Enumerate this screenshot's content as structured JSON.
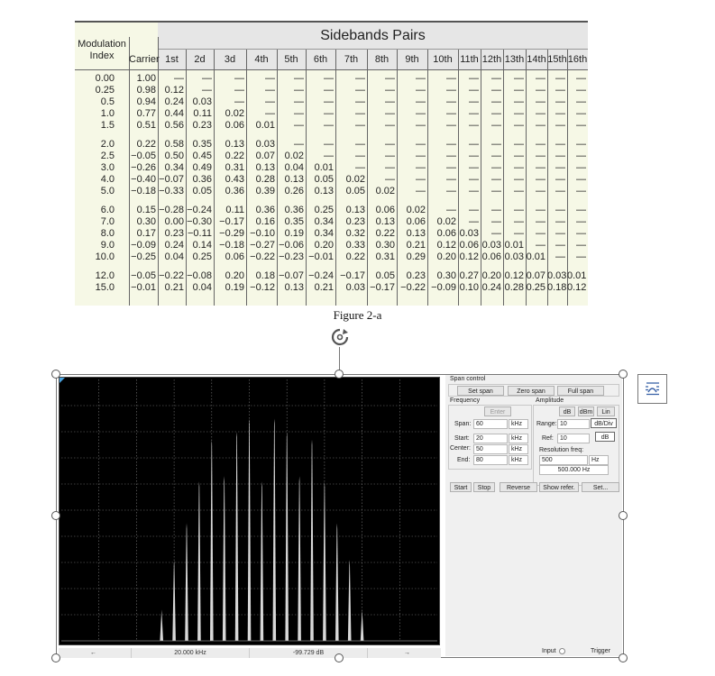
{
  "table": {
    "title": "Sidebands Pairs",
    "mod_header": [
      "Modulation",
      "Index"
    ],
    "carrier_header": "Carrier",
    "sideband_headers": [
      "1st",
      "2d",
      "3d",
      "4th",
      "5th",
      "6th",
      "7th",
      "8th",
      "9th",
      "10th",
      "11th",
      "12th",
      "13th",
      "14th",
      "15th",
      "16th"
    ],
    "rows": [
      {
        "index": "0.00",
        "values": [
          "1.00",
          "—",
          "—",
          "—",
          "—",
          "—",
          "—",
          "—",
          "—",
          "—",
          "—",
          "—",
          "—",
          "—",
          "—",
          "—",
          "—"
        ]
      },
      {
        "index": "0.25",
        "values": [
          "0.98",
          "0.12",
          "—",
          "—",
          "—",
          "—",
          "—",
          "—",
          "—",
          "—",
          "—",
          "—",
          "—",
          "—",
          "—",
          "—",
          "—"
        ]
      },
      {
        "index": "0.5",
        "values": [
          "0.94",
          "0.24",
          "0.03",
          "—",
          "—",
          "—",
          "—",
          "—",
          "—",
          "—",
          "—",
          "—",
          "—",
          "—",
          "—",
          "—",
          "—"
        ]
      },
      {
        "index": "1.0",
        "values": [
          "0.77",
          "0.44",
          "0.11",
          "0.02",
          "—",
          "—",
          "—",
          "—",
          "—",
          "—",
          "—",
          "—",
          "—",
          "—",
          "—",
          "—",
          "—"
        ]
      },
      {
        "index": "1.5",
        "values": [
          "0.51",
          "0.56",
          "0.23",
          "0.06",
          "0.01",
          "—",
          "—",
          "—",
          "—",
          "—",
          "—",
          "—",
          "—",
          "—",
          "—",
          "—",
          "—"
        ]
      },
      {
        "index": "2.0",
        "values": [
          "0.22",
          "0.58",
          "0.35",
          "0.13",
          "0.03",
          "—",
          "—",
          "—",
          "—",
          "—",
          "—",
          "—",
          "—",
          "—",
          "—",
          "—",
          "—"
        ]
      },
      {
        "index": "2.5",
        "values": [
          "−0.05",
          "0.50",
          "0.45",
          "0.22",
          "0.07",
          "0.02",
          "—",
          "—",
          "—",
          "—",
          "—",
          "—",
          "—",
          "—",
          "—",
          "—",
          "—"
        ]
      },
      {
        "index": "3.0",
        "values": [
          "−0.26",
          "0.34",
          "0.49",
          "0.31",
          "0.13",
          "0.04",
          "0.01",
          "—",
          "—",
          "—",
          "—",
          "—",
          "—",
          "—",
          "—",
          "—",
          "—"
        ]
      },
      {
        "index": "4.0",
        "values": [
          "−0.40",
          "−0.07",
          "0.36",
          "0.43",
          "0.28",
          "0.13",
          "0.05",
          "0.02",
          "—",
          "—",
          "—",
          "—",
          "—",
          "—",
          "—",
          "—",
          "—"
        ]
      },
      {
        "index": "5.0",
        "values": [
          "−0.18",
          "−0.33",
          "0.05",
          "0.36",
          "0.39",
          "0.26",
          "0.13",
          "0.05",
          "0.02",
          "—",
          "—",
          "—",
          "—",
          "—",
          "—",
          "—",
          "—"
        ]
      },
      {
        "index": "6.0",
        "values": [
          "0.15",
          "−0.28",
          "−0.24",
          "0.11",
          "0.36",
          "0.36",
          "0.25",
          "0.13",
          "0.06",
          "0.02",
          "—",
          "—",
          "—",
          "—",
          "—",
          "—",
          "—"
        ]
      },
      {
        "index": "7.0",
        "values": [
          "0.30",
          "0.00",
          "−0.30",
          "−0.17",
          "0.16",
          "0.35",
          "0.34",
          "0.23",
          "0.13",
          "0.06",
          "0.02",
          "—",
          "—",
          "—",
          "—",
          "—",
          "—"
        ]
      },
      {
        "index": "8.0",
        "values": [
          "0.17",
          "0.23",
          "−0.11",
          "−0.29",
          "−0.10",
          "0.19",
          "0.34",
          "0.32",
          "0.22",
          "0.13",
          "0.06",
          "0.03",
          "—",
          "—",
          "—",
          "—",
          "—"
        ]
      },
      {
        "index": "9.0",
        "values": [
          "−0.09",
          "0.24",
          "0.14",
          "−0.18",
          "−0.27",
          "−0.06",
          "0.20",
          "0.33",
          "0.30",
          "0.21",
          "0.12",
          "0.06",
          "0.03",
          "0.01",
          "—",
          "—",
          "—"
        ]
      },
      {
        "index": "10.0",
        "values": [
          "−0.25",
          "0.04",
          "0.25",
          "0.06",
          "−0.22",
          "−0.23",
          "−0.01",
          "0.22",
          "0.31",
          "0.29",
          "0.20",
          "0.12",
          "0.06",
          "0.03",
          "0.01",
          "—",
          "—"
        ]
      },
      {
        "index": "12.0",
        "values": [
          "−0.05",
          "−0.22",
          "−0.08",
          "0.20",
          "0.18",
          "−0.07",
          "−0.24",
          "−0.17",
          "0.05",
          "0.23",
          "0.30",
          "0.27",
          "0.20",
          "0.12",
          "0.07",
          "0.03",
          "0.01"
        ]
      },
      {
        "index": "15.0",
        "values": [
          "−0.01",
          "0.21",
          "0.04",
          "0.19",
          "−0.12",
          "0.13",
          "0.21",
          "0.03",
          "−0.17",
          "−0.22",
          "−0.09",
          "0.10",
          "0.24",
          "0.28",
          "0.25",
          "0.18",
          "0.12"
        ]
      }
    ]
  },
  "figure_caption": "Figure 2-a",
  "spectrum": {
    "line_color": "#d8d8d8",
    "grid_color": "#7a7a7a",
    "lines": [
      {
        "freq": 36,
        "level": 0.12
      },
      {
        "freq": 38,
        "level": 0.31
      },
      {
        "freq": 40,
        "level": 0.45
      },
      {
        "freq": 42,
        "level": 0.61
      },
      {
        "freq": 44,
        "level": 0.77
      },
      {
        "freq": 46,
        "level": 0.63
      },
      {
        "freq": 48,
        "level": 0.8
      },
      {
        "freq": 50,
        "level": 0.85
      },
      {
        "freq": 52,
        "level": 0.61
      },
      {
        "freq": 54,
        "level": 0.85
      },
      {
        "freq": 56,
        "level": 0.8
      },
      {
        "freq": 58,
        "level": 0.63
      },
      {
        "freq": 60,
        "level": 0.77
      },
      {
        "freq": 62,
        "level": 0.61
      },
      {
        "freq": 64,
        "level": 0.45
      },
      {
        "freq": 66,
        "level": 0.31
      },
      {
        "freq": 68,
        "level": 0.12
      }
    ]
  },
  "statusbar": {
    "left_arrow": "←",
    "freq_readout": "20.000 kHz",
    "level_readout": "-99.729  dB",
    "right_arrow": "→"
  },
  "panel": {
    "span_control_label": "Span control",
    "set_span": "Set span",
    "zero_span": "Zero span",
    "full_span": "Full span",
    "frequency_label": "Frequency",
    "enter": "Enter",
    "span_label": "Span:",
    "span_value": "60",
    "span_unit": "kHz",
    "start_label": "Start:",
    "start_value": "20",
    "start_unit": "kHz",
    "center_label": "Center:",
    "center_value": "50",
    "center_unit": "kHz",
    "end_label": "End:",
    "end_value": "80",
    "end_unit": "kHz",
    "amplitude_label": "Amplitude",
    "db": "dB",
    "dbm": "dBm",
    "lin": "Lin",
    "range_label": "Range:",
    "range_value": "10",
    "range_unit": "dB/Div",
    "ref_label": "Ref:",
    "ref_value": "10",
    "ref_unit": "dB",
    "resfreq_label": "Resolution freq:",
    "resfreq_value": "500",
    "resfreq_unit": "Hz",
    "resfreq_display": "500.000  Hz",
    "start_btn": "Start",
    "stop_btn": "Stop",
    "reverse_btn": "Reverse",
    "showref_btn": "Show refer.",
    "set_btn": "Set...",
    "input_label": "Input",
    "trigger_label": "Trigger"
  }
}
